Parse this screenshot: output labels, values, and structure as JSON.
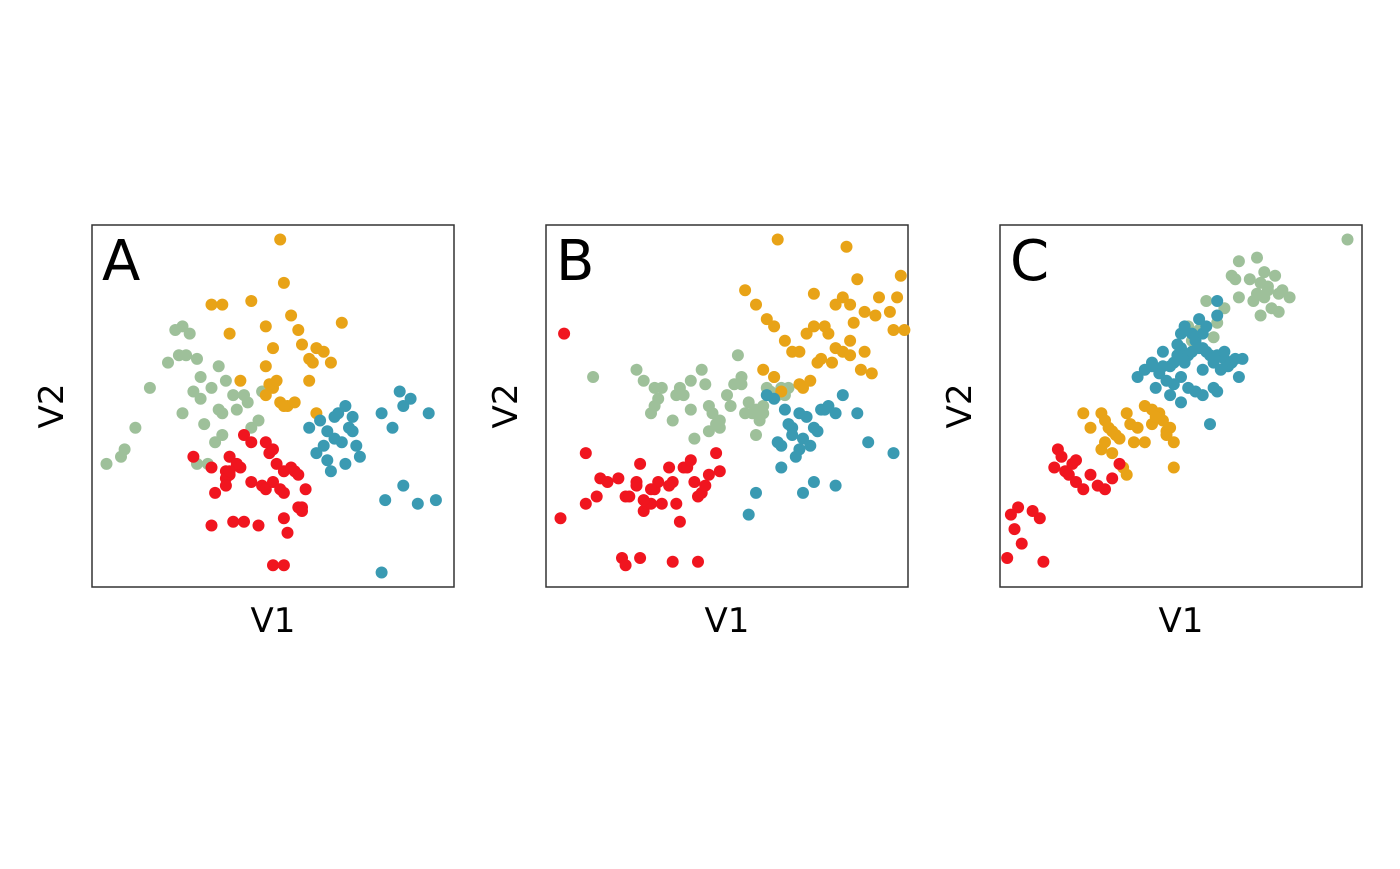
{
  "chart_data": [
    {
      "type": "scatter",
      "panel_label": "A",
      "xlabel": "V1",
      "ylabel": "V2",
      "xlim": [
        0,
        100
      ],
      "ylim": [
        0,
        100
      ],
      "series": [
        {
          "color": "#9EC09A",
          "x": [
            4,
            8,
            9,
            12,
            16,
            24,
            25,
            27,
            23,
            26,
            29,
            30,
            21,
            28,
            33,
            35,
            37,
            40,
            42,
            30,
            25,
            35,
            39,
            31,
            36,
            38,
            44,
            46,
            32,
            29,
            34,
            36,
            43,
            47
          ],
          "y": [
            34,
            36,
            38,
            44,
            55,
            64,
            72,
            70,
            71,
            64,
            63,
            58,
            62,
            54,
            55,
            61,
            57,
            49,
            53,
            52,
            48,
            49,
            53,
            45,
            42,
            36,
            44,
            46,
            34,
            34,
            40,
            48,
            51,
            54
          ]
        },
        {
          "color": "#E8A317",
          "x": [
            52,
            33,
            36,
            38,
            44,
            53,
            55,
            57,
            62,
            58,
            60,
            61,
            48,
            48,
            50,
            52,
            54,
            49,
            51,
            53,
            56,
            64,
            66,
            69,
            41,
            48,
            50,
            60,
            62
          ],
          "y": [
            96,
            78,
            78,
            70,
            79,
            84,
            75,
            71,
            66,
            67,
            63,
            62,
            61,
            53,
            55,
            51,
            50,
            56,
            57,
            50,
            51,
            65,
            62,
            73,
            57,
            72,
            66,
            57,
            48
          ]
        },
        {
          "color": "#3A9AB2",
          "x": [
            60,
            63,
            65,
            67,
            68,
            70,
            72,
            71,
            67,
            65,
            64,
            69,
            73,
            74,
            70,
            66,
            62,
            72,
            85,
            83,
            80,
            86,
            88,
            93,
            86,
            95,
            90,
            81,
            80
          ],
          "y": [
            44,
            46,
            43,
            47,
            48,
            50,
            47,
            44,
            41,
            35,
            39,
            40,
            39,
            36,
            34,
            32,
            37,
            43,
            54,
            44,
            48,
            50,
            52,
            48,
            28,
            24,
            23,
            24,
            4
          ]
        },
        {
          "color": "#F0151F",
          "x": [
            28,
            33,
            38,
            37,
            41,
            44,
            47,
            48,
            50,
            52,
            53,
            53,
            49,
            51,
            55,
            56,
            57,
            59,
            57,
            53,
            48,
            50,
            42,
            44,
            38,
            40,
            37,
            37,
            38,
            34,
            39,
            33,
            42,
            46,
            54,
            58,
            58,
            50,
            53
          ],
          "y": [
            36,
            33,
            31,
            32,
            33,
            29,
            28,
            27,
            29,
            27,
            26,
            32,
            37,
            34,
            33,
            32,
            31,
            27,
            22,
            19,
            40,
            38,
            42,
            40,
            36,
            34,
            30,
            28,
            32,
            26,
            18,
            17,
            18,
            17,
            15,
            22,
            21,
            6,
            6
          ]
        }
      ]
    },
    {
      "type": "scatter",
      "panel_label": "B",
      "xlabel": "V1",
      "ylabel": "V2",
      "xlim": [
        0,
        100
      ],
      "ylim": [
        0,
        100
      ],
      "series": [
        {
          "color": "#9EC09A",
          "x": [
            13,
            25,
            27,
            30,
            29,
            31,
            32,
            36,
            37,
            38,
            40,
            43,
            40,
            44,
            45,
            46,
            47,
            48,
            50,
            51,
            52,
            53,
            54,
            55,
            56,
            57,
            58,
            59,
            60,
            61,
            62,
            63,
            64,
            65,
            66,
            67,
            60,
            58,
            54,
            48,
            45,
            41,
            30,
            35
          ],
          "y": [
            58,
            60,
            57,
            55,
            48,
            52,
            55,
            53,
            55,
            53,
            57,
            60,
            49,
            56,
            50,
            48,
            45,
            44,
            53,
            50,
            56,
            64,
            56,
            48,
            51,
            48,
            42,
            46,
            48,
            55,
            54,
            58,
            53,
            55,
            53,
            55,
            50,
            49,
            58,
            46,
            43,
            41,
            50,
            46
          ]
        },
        {
          "color": "#E8A317",
          "x": [
            64,
            83,
            86,
            74,
            77,
            80,
            82,
            84,
            88,
            91,
            92,
            95,
            97,
            98,
            96,
            99,
            55,
            58,
            61,
            63,
            66,
            68,
            70,
            72,
            74,
            76,
            78,
            80,
            82,
            84,
            85,
            87,
            88,
            90,
            75,
            70,
            63,
            60,
            65,
            71,
            73,
            79,
            84
          ],
          "y": [
            96,
            94,
            85,
            81,
            72,
            78,
            80,
            78,
            76,
            75,
            80,
            76,
            80,
            86,
            71,
            71,
            82,
            78,
            74,
            72,
            68,
            65,
            65,
            70,
            72,
            63,
            70,
            66,
            65,
            68,
            73,
            60,
            65,
            59,
            62,
            56,
            58,
            60,
            54,
            55,
            57,
            62,
            64
          ]
        },
        {
          "color": "#3A9AB2",
          "x": [
            61,
            63,
            66,
            67,
            68,
            70,
            72,
            71,
            74,
            75,
            76,
            77,
            73,
            69,
            65,
            64,
            78,
            80,
            82,
            86,
            89,
            96,
            68,
            70,
            74,
            58,
            56,
            65,
            71,
            80
          ],
          "y": [
            53,
            52,
            49,
            45,
            44,
            48,
            47,
            41,
            44,
            43,
            49,
            49,
            39,
            36,
            39,
            40,
            50,
            48,
            53,
            48,
            40,
            37,
            42,
            38,
            29,
            26,
            20,
            33,
            26,
            28
          ]
        },
        {
          "color": "#F0151F",
          "x": [
            5,
            4,
            11,
            11,
            14,
            15,
            17,
            20,
            22,
            23,
            25,
            26,
            27,
            28,
            29,
            30,
            31,
            32,
            34,
            35,
            36,
            38,
            39,
            40,
            41,
            42,
            43,
            44,
            45,
            47,
            48,
            37,
            34,
            25,
            27,
            29,
            21,
            22,
            26,
            35,
            42
          ],
          "y": [
            70,
            19,
            37,
            23,
            25,
            30,
            29,
            30,
            25,
            25,
            29,
            34,
            21,
            23,
            23,
            27,
            29,
            23,
            33,
            29,
            23,
            33,
            33,
            35,
            29,
            25,
            26,
            28,
            31,
            37,
            32,
            18,
            28,
            28,
            24,
            27,
            8,
            6,
            8,
            7,
            7
          ]
        }
      ]
    },
    {
      "type": "scatter",
      "panel_label": "C",
      "xlabel": "V1",
      "ylabel": "V2",
      "xlim": [
        0,
        100
      ],
      "ylim": [
        0,
        100
      ],
      "series": [
        {
          "color": "#9EC09A",
          "x": [
            96,
            64,
            66,
            71,
            69,
            72,
            73,
            74,
            76,
            78,
            80,
            73,
            75,
            77,
            74,
            72,
            70,
            65,
            62,
            60,
            59,
            57,
            55,
            52,
            53,
            77,
            71,
            66
          ],
          "y": [
            96,
            86,
            90,
            91,
            85,
            84,
            87,
            82,
            86,
            82,
            80,
            80,
            77,
            81,
            83,
            75,
            79,
            85,
            77,
            73,
            69,
            79,
            71,
            72,
            68,
            76,
            81,
            80
          ]
        },
        {
          "color": "#E8A317",
          "x": [
            23,
            28,
            29,
            30,
            32,
            31,
            33,
            35,
            36,
            38,
            40,
            42,
            44,
            45,
            46,
            47,
            48,
            40,
            37,
            42,
            43,
            28,
            25,
            29,
            31,
            34,
            46,
            48,
            35
          ],
          "y": [
            48,
            48,
            46,
            44,
            42,
            43,
            41,
            48,
            45,
            44,
            40,
            45,
            48,
            46,
            43,
            44,
            40,
            50,
            40,
            49,
            47,
            38,
            44,
            40,
            37,
            33,
            42,
            33,
            31
          ]
        },
        {
          "color": "#3A9AB2",
          "x": [
            38,
            40,
            42,
            45,
            47,
            48,
            49,
            50,
            51,
            52,
            53,
            54,
            55,
            56,
            57,
            58,
            59,
            60,
            61,
            62,
            63,
            64,
            65,
            66,
            67,
            54,
            52,
            50,
            48,
            46,
            44,
            42,
            50,
            57,
            55,
            60,
            60,
            51,
            53,
            49,
            45,
            43,
            47,
            56,
            59,
            51,
            56,
            62,
            50,
            56,
            60,
            58
          ],
          "y": [
            58,
            60,
            62,
            61,
            61,
            62,
            64,
            66,
            64,
            64,
            65,
            68,
            66,
            70,
            65,
            64,
            62,
            64,
            60,
            63,
            61,
            62,
            63,
            58,
            63,
            54,
            55,
            58,
            56,
            57,
            59,
            61,
            70,
            72,
            74,
            75,
            79,
            72,
            70,
            67,
            65,
            55,
            53,
            60,
            55,
            62,
            66,
            65,
            51,
            53,
            54,
            45
          ]
        },
        {
          "color": "#F0151F",
          "x": [
            16,
            17,
            18,
            19,
            20,
            21,
            21,
            23,
            25,
            27,
            29,
            31,
            33,
            15,
            11,
            5,
            9,
            3,
            2,
            4,
            6,
            12
          ],
          "y": [
            38,
            36,
            32,
            31,
            34,
            35,
            29,
            27,
            31,
            28,
            27,
            30,
            34,
            33,
            19,
            22,
            21,
            20,
            8,
            16,
            12,
            7
          ]
        }
      ]
    }
  ]
}
